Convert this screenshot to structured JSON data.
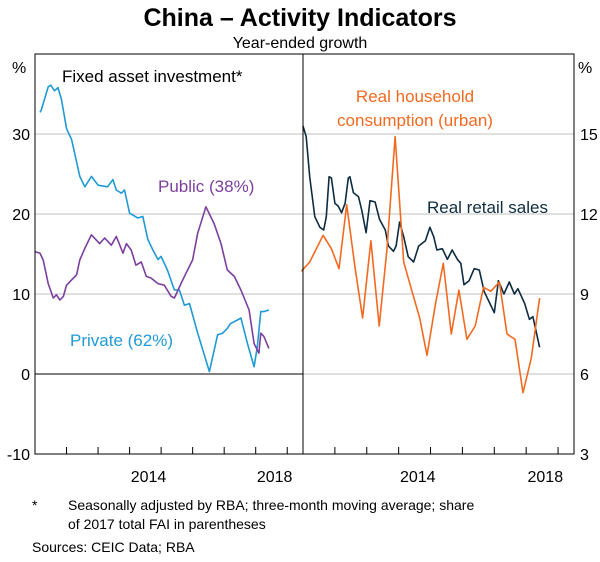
{
  "title": "China – Activity Indicators",
  "subtitle": "Year-ended growth",
  "footnote_marker": "*",
  "footnote_line1": "Seasonally adjusted by RBA; three-month moving average; share",
  "footnote_line2": "of 2017 total FAI in parentheses",
  "sources": "Sources: CEIC Data; RBA",
  "colors": {
    "private": "#1f9ad6",
    "public": "#7b3f9e",
    "retail": "#0d2c40",
    "household": "#f26a21",
    "grid": "#c0c0c0"
  },
  "chart_data": [
    {
      "type": "line",
      "panel": "left",
      "title": "Fixed asset investment*",
      "ylabel": "%",
      "xlim": [
        2011,
        2019.5
      ],
      "ylim": [
        -10,
        40
      ],
      "yticks": [
        -10,
        0,
        10,
        20,
        30
      ],
      "xtick_labels": [
        2014,
        2018
      ],
      "xtick_marks": [
        2012,
        2013,
        2014,
        2015,
        2016,
        2017,
        2018,
        2019
      ],
      "series": [
        {
          "name": "Private (62%)",
          "color_key": "private",
          "x": [
            2011.16,
            2011.2,
            2011.42,
            2011.5,
            2011.62,
            2011.73,
            2011.84,
            2012,
            2012.16,
            2012.42,
            2012.58,
            2012.79,
            2013,
            2013.3,
            2013.47,
            2013.58,
            2013.74,
            2013.84,
            2014,
            2014.26,
            2014.42,
            2014.58,
            2014.74,
            2014.9,
            2015,
            2015.2,
            2015.42,
            2015.58,
            2015.74,
            2015.9,
            2016.16,
            2016.53,
            2016.79,
            2016.95,
            2017.1,
            2017.2,
            2017.42,
            2017.53,
            2017.74,
            2017.95,
            2018.05,
            2018.16,
            2018.26,
            2018.42
          ],
          "y": [
            32.7,
            33,
            35.9,
            36.1,
            35.4,
            35.8,
            34.3,
            30.7,
            29.3,
            24.7,
            23.4,
            24.7,
            23.6,
            23.4,
            24.3,
            23,
            22.6,
            23,
            20.1,
            19.5,
            19.7,
            16.8,
            15.5,
            14.3,
            14.7,
            13,
            10.5,
            10.5,
            8.6,
            8.8,
            5.1,
            0.3,
            4.9,
            5.1,
            5.7,
            6.3,
            6.75,
            7,
            3.8,
            0.9,
            3.4,
            7.8,
            7.8,
            8
          ]
        },
        {
          "name": "Public (38%)",
          "color_key": "public",
          "x": [
            2011.0,
            2011.16,
            2011.26,
            2011.42,
            2011.58,
            2011.68,
            2011.79,
            2011.9,
            2012,
            2012.32,
            2012.42,
            2012.58,
            2012.79,
            2013.05,
            2013.21,
            2013.42,
            2013.58,
            2013.79,
            2013.9,
            2014.05,
            2014.2,
            2014.37,
            2014.53,
            2014.68,
            2014.9,
            2015.1,
            2015.32,
            2015.42,
            2015.63,
            2015.79,
            2016,
            2016.16,
            2016.42,
            2016.68,
            2016.9,
            2017.1,
            2017.32,
            2017.53,
            2017.79,
            2017.95,
            2018.1,
            2018.16,
            2018.26,
            2018.42
          ],
          "y": [
            15.3,
            15.1,
            14.25,
            11.3,
            9.5,
            9.9,
            9.25,
            9.7,
            11.1,
            12.4,
            14.25,
            15.7,
            17.4,
            16.3,
            17,
            16.1,
            17.2,
            15.1,
            16.3,
            15.5,
            13.6,
            14,
            12.2,
            12,
            11.3,
            11.1,
            9.7,
            9.5,
            11.3,
            12.6,
            14.25,
            17.6,
            20.9,
            18.8,
            16.3,
            13,
            12.2,
            10.5,
            8,
            3.8,
            2.6,
            5.1,
            4.7,
            3.2
          ]
        }
      ],
      "series_labels": [
        "Private (62%)",
        "Public (38%)"
      ]
    },
    {
      "type": "line",
      "panel": "right",
      "ylabel": "%",
      "xlim": [
        2011,
        2019.5
      ],
      "ylim": [
        3,
        18
      ],
      "yticks": [
        3,
        6,
        9,
        12,
        15
      ],
      "xtick_labels": [
        2014,
        2018
      ],
      "xtick_marks": [
        2012,
        2013,
        2014,
        2015,
        2016,
        2017,
        2018,
        2019
      ],
      "series": [
        {
          "name": "Real retail sales",
          "color_key": "retail",
          "x": [
            2011.0,
            2011.1,
            2011.21,
            2011.37,
            2011.53,
            2011.65,
            2011.73,
            2011.82,
            2011.89,
            2012,
            2012.1,
            2012.21,
            2012.32,
            2012.42,
            2012.47,
            2012.58,
            2012.74,
            2012.84,
            2012.98,
            2013.1,
            2013.26,
            2013.4,
            2013.58,
            2013.68,
            2013.84,
            2013.92,
            2014.03,
            2014.16,
            2014.3,
            2014.47,
            2014.63,
            2014.84,
            2014.98,
            2015.1,
            2015.2,
            2015.37,
            2015.53,
            2015.68,
            2015.84,
            2015.95,
            2016.05,
            2016.21,
            2016.37,
            2016.53,
            2016.68,
            2016.84,
            2017,
            2017.13,
            2017.3,
            2017.47,
            2017.63,
            2017.74,
            2017.95,
            2018.1,
            2018.21,
            2018.42
          ],
          "y": [
            15.3,
            14.9,
            13.4,
            11.9,
            11.5,
            11.4,
            11.9,
            13.4,
            13.35,
            12.4,
            12.3,
            12.05,
            12.4,
            13.35,
            13.4,
            12.8,
            12.65,
            12.15,
            11.3,
            12.5,
            12.45,
            11.8,
            11.4,
            10.8,
            10.6,
            10.8,
            11.7,
            11.15,
            10.4,
            10.2,
            10.8,
            11,
            11.5,
            11.15,
            10.65,
            10.7,
            10.3,
            10.65,
            10.3,
            10.15,
            9.35,
            9.5,
            9.95,
            9.9,
            9.1,
            8.7,
            8.3,
            9.5,
            9,
            9.45,
            9,
            9.2,
            8.65,
            8.05,
            8.15,
            7
          ]
        },
        {
          "name": "Real household consumption (urban)",
          "color_key": "household",
          "x": [
            2010.95,
            2011.21,
            2011.63,
            2011.89,
            2012.13,
            2012.37,
            2012.63,
            2012.87,
            2013.13,
            2013.39,
            2013.63,
            2013.89,
            2014.16,
            2014.42,
            2014.66,
            2014.89,
            2015.16,
            2015.4,
            2015.65,
            2015.89,
            2016.14,
            2016.4,
            2016.66,
            2016.89,
            2017.16,
            2017.4,
            2017.65,
            2017.9,
            2018.16,
            2018.42
          ],
          "y": [
            9.85,
            10.2,
            11.2,
            10.7,
            9.95,
            12.35,
            10,
            8.1,
            11,
            7.8,
            10.65,
            14.9,
            10.2,
            9.1,
            8.1,
            6.7,
            8.65,
            10.15,
            7.5,
            9.15,
            7.3,
            7.8,
            9.25,
            9.1,
            9.45,
            7.5,
            7.3,
            5.3,
            6.6,
            8.85
          ]
        }
      ],
      "series_labels": [
        "Real household",
        "consumption (urban)",
        "Real retail sales"
      ]
    }
  ]
}
